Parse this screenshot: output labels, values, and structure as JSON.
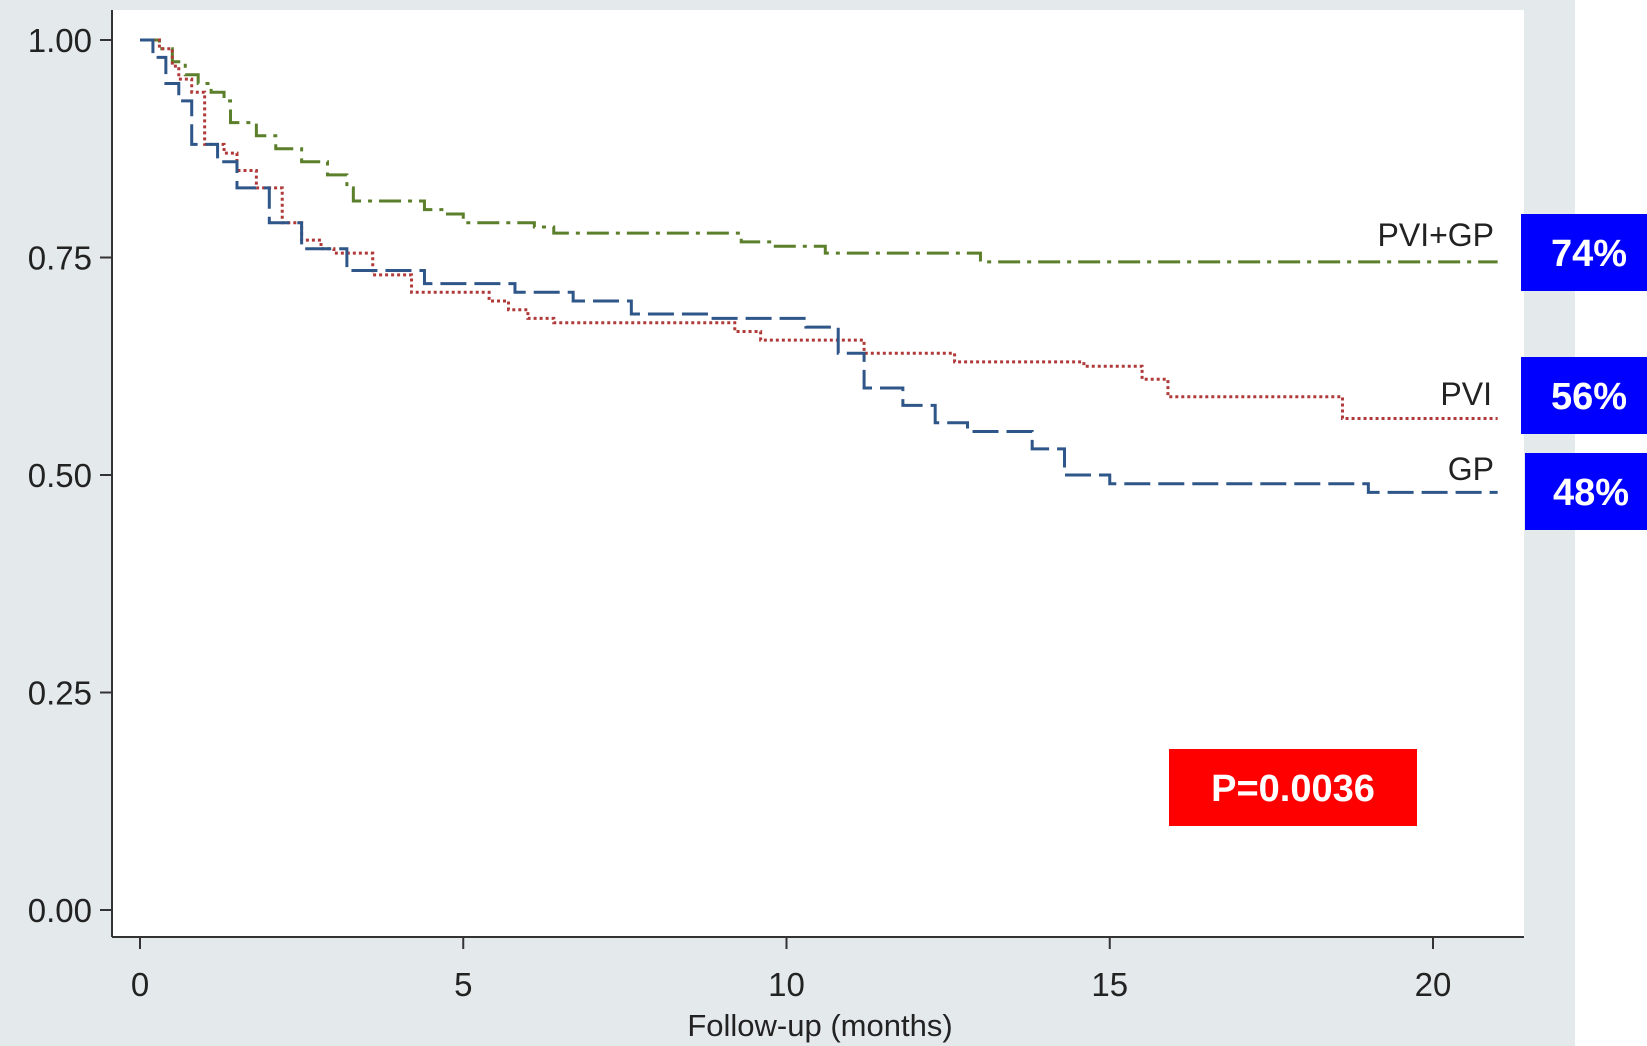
{
  "chart_data": {
    "type": "line",
    "title": "",
    "xlabel": "Follow-up (months)",
    "ylabel": "",
    "xlim": [
      -1,
      21.5
    ],
    "ylim": [
      -0.03,
      1.03
    ],
    "xticks": [
      0,
      5,
      10,
      15,
      20
    ],
    "xtick_labels": [
      "0",
      "5",
      "10",
      "15",
      "20"
    ],
    "yticks": [
      0,
      0.25,
      0.5,
      0.75,
      1.0
    ],
    "ytick_labels": [
      "0.00",
      "0.25",
      "0.50",
      "0.75",
      "1.00"
    ],
    "grid": false,
    "series": [
      {
        "name": "PVI+GP",
        "style": "dash-dot",
        "color": "#5b7f2a",
        "end_label": "74%",
        "x": [
          0,
          0.3,
          0.5,
          0.7,
          0.9,
          1.1,
          1.3,
          1.4,
          1.8,
          2.1,
          2.5,
          2.9,
          3.2,
          3.3,
          4.4,
          4.7,
          5.0,
          6.1,
          6.4,
          9.3,
          9.8,
          10.6,
          13.0,
          21.0
        ],
        "y": [
          1.0,
          0.99,
          0.975,
          0.96,
          0.95,
          0.94,
          0.93,
          0.905,
          0.89,
          0.875,
          0.86,
          0.845,
          0.83,
          0.815,
          0.805,
          0.8,
          0.79,
          0.785,
          0.778,
          0.768,
          0.763,
          0.755,
          0.745,
          0.745
        ]
      },
      {
        "name": "PVI",
        "style": "dotted",
        "color": "#b03a3a",
        "end_label": "56%",
        "x": [
          0,
          0.3,
          0.5,
          0.6,
          0.8,
          1.0,
          1.3,
          1.5,
          1.8,
          2.2,
          2.5,
          2.8,
          3.0,
          3.6,
          4.2,
          5.4,
          5.7,
          6.0,
          6.4,
          9.2,
          9.6,
          11.2,
          12.6,
          14.6,
          15.5,
          15.9,
          18.6,
          21.0
        ],
        "y": [
          1.0,
          0.99,
          0.97,
          0.955,
          0.94,
          0.88,
          0.87,
          0.85,
          0.83,
          0.79,
          0.77,
          0.76,
          0.755,
          0.73,
          0.71,
          0.7,
          0.69,
          0.68,
          0.675,
          0.665,
          0.655,
          0.64,
          0.63,
          0.625,
          0.61,
          0.59,
          0.565,
          0.565
        ]
      },
      {
        "name": "GP",
        "style": "dashed",
        "color": "#2f5688",
        "end_label": "48%",
        "x": [
          0,
          0.2,
          0.4,
          0.6,
          0.8,
          1.2,
          1.5,
          2.0,
          2.5,
          3.2,
          4.4,
          5.8,
          6.7,
          7.6,
          8.8,
          10.3,
          10.8,
          11.2,
          11.8,
          12.3,
          12.8,
          13.8,
          14.3,
          15.0,
          19.0,
          21.0
        ],
        "y": [
          1.0,
          0.98,
          0.95,
          0.93,
          0.88,
          0.86,
          0.83,
          0.79,
          0.76,
          0.735,
          0.72,
          0.71,
          0.7,
          0.685,
          0.68,
          0.67,
          0.64,
          0.6,
          0.58,
          0.56,
          0.55,
          0.53,
          0.5,
          0.49,
          0.48,
          0.48
        ]
      }
    ],
    "annotations": [
      {
        "text": "P=0.0036",
        "color": "#ff0000",
        "x": 17.5,
        "y": 0.14
      }
    ]
  },
  "badges": {
    "pvi_gp": {
      "text": "74%",
      "color": "#0000ff"
    },
    "pvi": {
      "text": "56%",
      "color": "#0000ff"
    },
    "gp": {
      "text": "48%",
      "color": "#0000ff"
    }
  },
  "p_value_box": {
    "text": "P=0.0036",
    "color": "#ff0000"
  },
  "colors": {
    "plot_border": "#e4e9ec",
    "axis": "#333333"
  }
}
